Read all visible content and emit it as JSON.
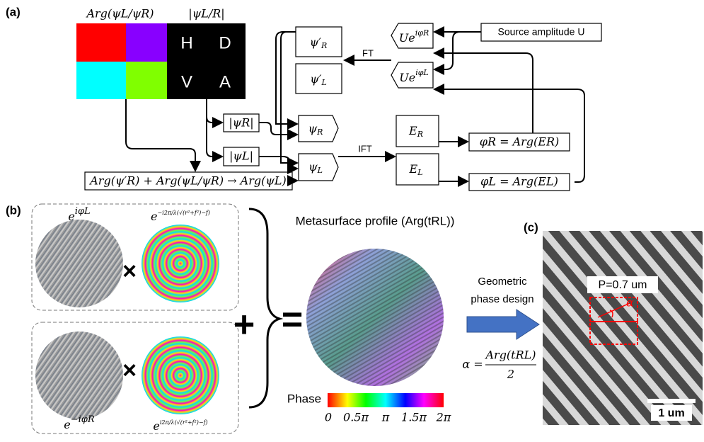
{
  "panel_a": {
    "label": "(a)",
    "arg_title": "Arg(ψL/ψR)",
    "abs_title": "|ψL/R|",
    "hdva": [
      "H",
      "D",
      "V",
      "A"
    ],
    "psi_prime_R": {
      "base": "ψ′",
      "sub": "R"
    },
    "psi_prime_L": {
      "base": "ψ′",
      "sub": "L"
    },
    "source": "Source amplitude U",
    "u_R": {
      "base": "Ue",
      "sup": "iφR"
    },
    "u_L": {
      "base": "Ue",
      "sup": "iφL"
    },
    "ft": "FT",
    "ift": "IFT",
    "abs_R": "|ψR|",
    "abs_L": "|ψL|",
    "psi_R": {
      "base": "ψ",
      "sub": "R"
    },
    "psi_L": {
      "base": "ψ",
      "sub": "L"
    },
    "E_R": {
      "base": "E",
      "sub": "R"
    },
    "E_L": {
      "base": "E",
      "sub": "L"
    },
    "phi_R": "φR = Arg(ER)",
    "phi_L": "φL = Arg(EL)",
    "sum": "Arg(ψ′R) + Arg(ψL/ψR) → Arg(ψL)"
  },
  "panel_b": {
    "label": "(b)",
    "top_phase": {
      "base": "e",
      "sup": "iφL"
    },
    "top_lens": {
      "base": "e",
      "sup": "−i2π/λ(√(r²+f²)−f)"
    },
    "bottom_phase": {
      "base": "e",
      "sup": "−iφR"
    },
    "bottom_lens": {
      "base": "e",
      "sup": "i2π/λ(√(r²+f²)−f)"
    },
    "times": "×",
    "plus": "+",
    "equals": "=",
    "profile_title": "Metasurface profile (Arg(tRL))",
    "phase_label": "Phase",
    "phase_ticks": [
      "0",
      "0.5π",
      "π",
      "1.5π",
      "2π"
    ],
    "design": [
      "Geometric",
      "phase design"
    ],
    "alpha_lhs": "α =",
    "alpha_num": "Arg(tRL)",
    "alpha_den": "2"
  },
  "panel_c": {
    "label": "(c)",
    "period": "P=0.7 um",
    "angle": "α",
    "scale": "1 um"
  }
}
